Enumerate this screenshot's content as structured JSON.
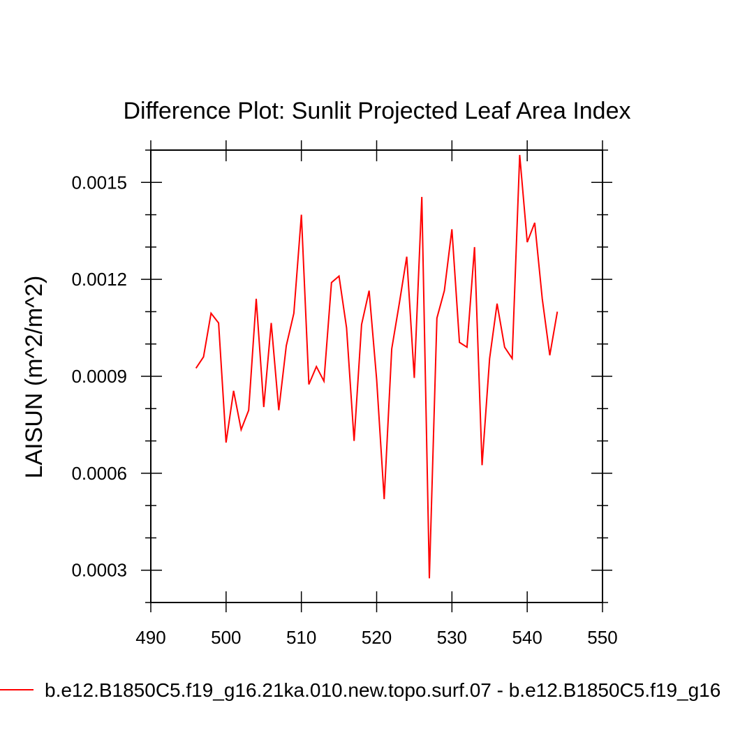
{
  "chart_data": {
    "type": "line",
    "title": "Difference Plot: Sunlit Projected Leaf Area Index",
    "ylabel": "LAISUN  (m^2/m^2)",
    "xlabel": "",
    "xlim": [
      490,
      550
    ],
    "ylim": [
      0.0002,
      0.0016
    ],
    "xticks": [
      490,
      500,
      510,
      520,
      530,
      540,
      550
    ],
    "xtick_labels": [
      "490",
      "500",
      "510",
      "520",
      "530",
      "540",
      "550"
    ],
    "xminor_step": 10,
    "yticks": [
      0.0003,
      0.0006,
      0.0009,
      0.0012,
      0.0015
    ],
    "ytick_labels": [
      "0.0003",
      "0.0006",
      "0.0009",
      "0.0012",
      "0.0015"
    ],
    "yminor_step": 0.0001,
    "grid": false,
    "legend_position": "bottom",
    "series": [
      {
        "name": "b.e12.B1850C5.f19_g16.21ka.010.new.topo.surf.07 - b.e12.B1850C5.f19_g16",
        "color": "#ff0000",
        "x": [
          496,
          497,
          498,
          499,
          500,
          501,
          502,
          503,
          504,
          505,
          506,
          507,
          508,
          509,
          510,
          511,
          512,
          513,
          514,
          515,
          516,
          517,
          518,
          519,
          520,
          521,
          522,
          523,
          524,
          525,
          526,
          527,
          528,
          529,
          530,
          531,
          532,
          533,
          534,
          535,
          536,
          537,
          538,
          539,
          540,
          541,
          542,
          543,
          544
        ],
        "values": [
          0.000925,
          0.00096,
          0.001095,
          0.001065,
          0.000695,
          0.000855,
          0.000735,
          0.000795,
          0.00114,
          0.000805,
          0.001065,
          0.000795,
          0.000995,
          0.001095,
          0.0014,
          0.000875,
          0.00093,
          0.000885,
          0.00119,
          0.00121,
          0.00105,
          0.0007,
          0.00106,
          0.001165,
          0.00089,
          0.00052,
          0.000985,
          0.001125,
          0.00127,
          0.000895,
          0.001455,
          0.000275,
          0.00108,
          0.001165,
          0.001355,
          0.001005,
          0.00099,
          0.0013,
          0.000625,
          0.000955,
          0.001125,
          0.00099,
          0.000955,
          0.001585,
          0.001315,
          0.001375,
          0.00114,
          0.000965,
          0.0011
        ]
      }
    ]
  }
}
